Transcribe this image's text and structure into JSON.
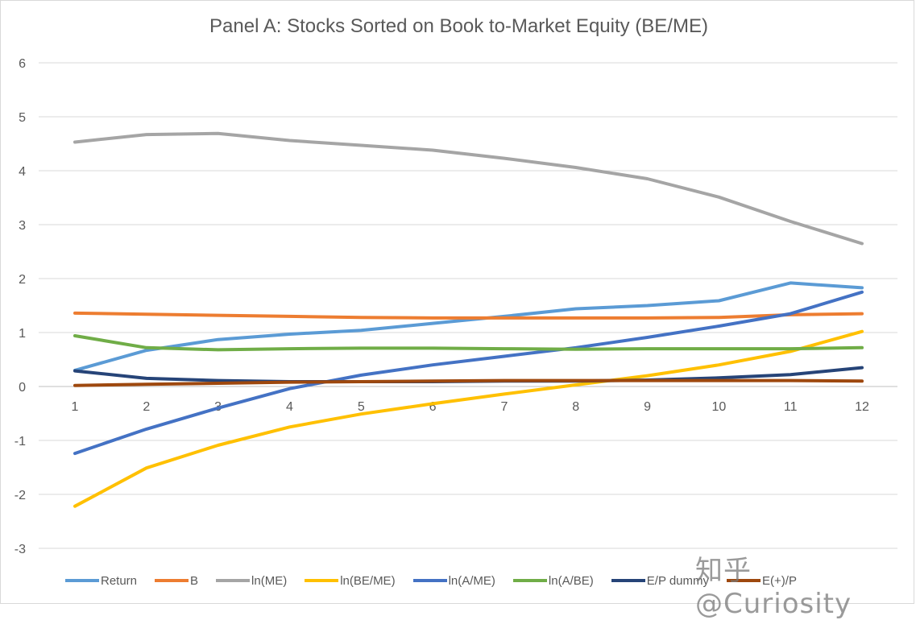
{
  "watermark": "知乎 @Curiosity",
  "chart_data": {
    "type": "line",
    "title": "Panel A: Stocks Sorted on Book to-Market Equity (BE/ME)",
    "xlabel": "",
    "ylabel": "",
    "x": [
      1,
      2,
      3,
      4,
      5,
      6,
      7,
      8,
      9,
      10,
      11,
      12
    ],
    "ylim": [
      -3,
      6
    ],
    "yticks": [
      6,
      5,
      4,
      3,
      2,
      1,
      0,
      -1,
      -2,
      -3
    ],
    "grid": true,
    "legend_position": "bottom",
    "series": [
      {
        "name": "Return",
        "color": "#5b9bd5",
        "values": [
          0.3,
          0.67,
          0.87,
          0.97,
          1.04,
          1.17,
          1.3,
          1.44,
          1.5,
          1.59,
          1.92,
          1.83
        ]
      },
      {
        "name": "B",
        "color": "#ed7d31",
        "values": [
          1.36,
          1.34,
          1.32,
          1.3,
          1.28,
          1.27,
          1.27,
          1.27,
          1.27,
          1.28,
          1.33,
          1.35
        ]
      },
      {
        "name": "ln(ME)",
        "color": "#a5a5a5",
        "values": [
          4.53,
          4.67,
          4.69,
          4.56,
          4.47,
          4.38,
          4.23,
          4.06,
          3.85,
          3.51,
          3.06,
          2.65
        ]
      },
      {
        "name": "ln(BE/ME)",
        "color": "#ffc000",
        "values": [
          -2.22,
          -1.51,
          -1.09,
          -0.75,
          -0.51,
          -0.32,
          -0.14,
          0.03,
          0.2,
          0.4,
          0.65,
          1.02
        ]
      },
      {
        "name": "ln(A/ME)",
        "color": "#4472c4",
        "values": [
          -1.24,
          -0.79,
          -0.4,
          -0.04,
          0.21,
          0.4,
          0.56,
          0.72,
          0.91,
          1.12,
          1.35,
          1.75
        ]
      },
      {
        "name": "ln(A/BE)",
        "color": "#70ad47",
        "values": [
          0.94,
          0.72,
          0.68,
          0.7,
          0.71,
          0.71,
          0.7,
          0.69,
          0.7,
          0.7,
          0.7,
          0.72
        ]
      },
      {
        "name": "E/P dummy",
        "color": "#264478",
        "values": [
          0.29,
          0.15,
          0.11,
          0.09,
          0.09,
          0.09,
          0.1,
          0.1,
          0.12,
          0.16,
          0.22,
          0.35
        ]
      },
      {
        "name": "E(+)/P",
        "color": "#9e480e",
        "values": [
          0.02,
          0.04,
          0.06,
          0.08,
          0.09,
          0.1,
          0.11,
          0.11,
          0.11,
          0.11,
          0.11,
          0.1
        ]
      }
    ]
  }
}
